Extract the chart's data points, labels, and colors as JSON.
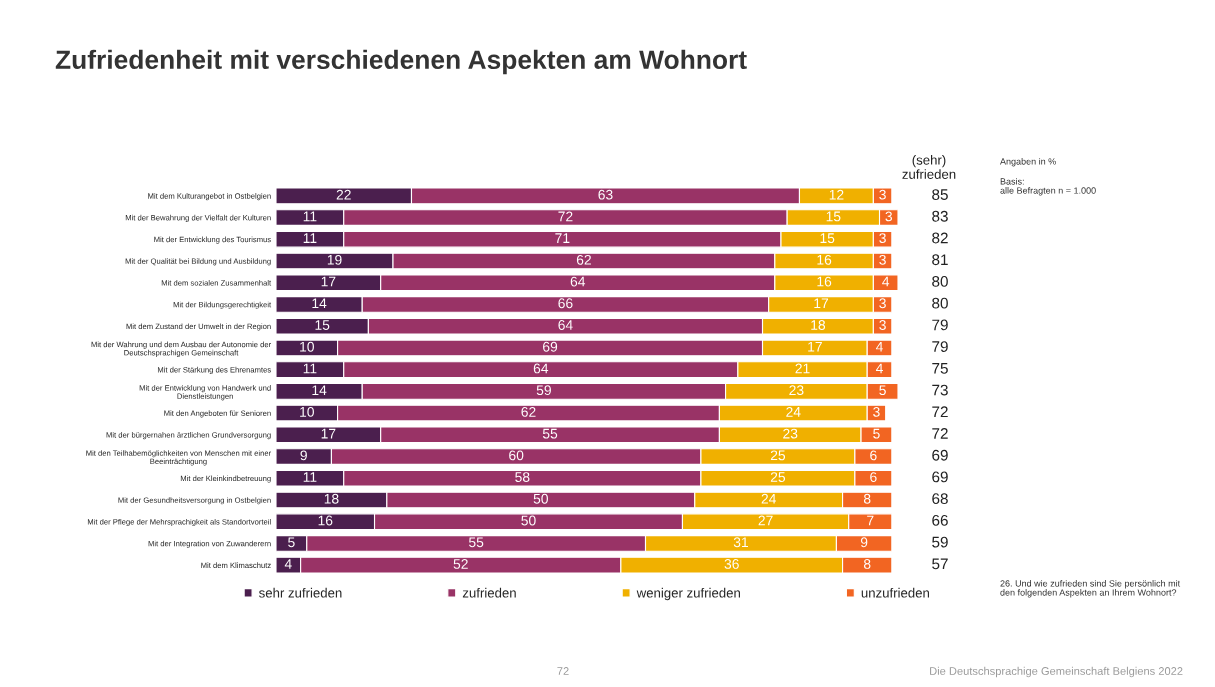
{
  "chart_data": {
    "type": "bar",
    "orientation": "horizontal",
    "stacked": true,
    "data_labels": true,
    "legend": "bottom",
    "grid": false,
    "title": "Zufriedenheit mit verschiedenen Aspekten am Wohnort",
    "categories": [
      "Mit dem Kulturangebot in Ostbelgien",
      "Mit der Bewahrung der Vielfalt der Kulturen",
      "Mit der Entwicklung des Tourismus",
      "Mit der Qualität bei Bildung und Ausbildung",
      "Mit dem sozialen Zusammenhalt",
      "Mit der Bildungsgerechtigkeit",
      "Mit dem Zustand der Umwelt in der Region",
      "Mit der Wahrung und dem Ausbau der Autonomie der\nDeutschsprachigen Gemeinschaft",
      "Mit der Stärkung des Ehrenamtes",
      "Mit der Entwicklung von Handwerk und\nDienstleistungen",
      "Mit den Angeboten für Senioren",
      "Mit der bürgernahen ärztlichen Grundversorgung",
      "Mit den Teilhabemöglichkeiten von Menschen mit einer\nBeeinträchtigung",
      "Mit der Kleinkindbetreuung",
      "Mit der Gesundheitsversorgung in Ostbelgien",
      "Mit der Pflege der Mehrsprachigkeit als Standortvorteil",
      "Mit der Integration von Zuwanderern",
      "Mit dem Klimaschutz"
    ],
    "series": [
      {
        "name": "sehr zufrieden",
        "color": "#4b1f4e",
        "values": [
          22,
          11,
          11,
          19,
          17,
          14,
          15,
          10,
          11,
          14,
          10,
          17,
          9,
          11,
          18,
          16,
          5,
          4
        ]
      },
      {
        "name": "zufrieden",
        "color": "#993366",
        "values": [
          63,
          72,
          71,
          62,
          64,
          66,
          64,
          69,
          64,
          59,
          62,
          55,
          60,
          58,
          50,
          50,
          55,
          52
        ]
      },
      {
        "name": "weniger zufrieden",
        "color": "#f0b000",
        "values": [
          12,
          15,
          15,
          16,
          16,
          17,
          18,
          17,
          21,
          23,
          24,
          23,
          25,
          25,
          24,
          27,
          31,
          36
        ]
      },
      {
        "name": "unzufrieden",
        "color": "#f26522",
        "values": [
          3,
          3,
          3,
          3,
          4,
          3,
          3,
          4,
          4,
          5,
          3,
          5,
          6,
          6,
          8,
          7,
          9,
          8
        ]
      }
    ],
    "annotations": [
      "(sehr)\nzufrieden",
      "Angaben in %",
      "Basis:\nalle Befragten n = 1.000",
      "26. Und wie zufrieden sind Sie persönlich mit\nden folgenden Aspekten an Ihrem Wohnort?",
      "72",
      "Die Deutschsprachige Gemeinschaft Belgiens 2022",
      "85",
      "83",
      "82",
      "81",
      "80",
      "80",
      "79",
      "79",
      "75",
      "73",
      "72",
      "72",
      "69",
      "69",
      "68",
      "66",
      "59",
      "57"
    ]
  }
}
